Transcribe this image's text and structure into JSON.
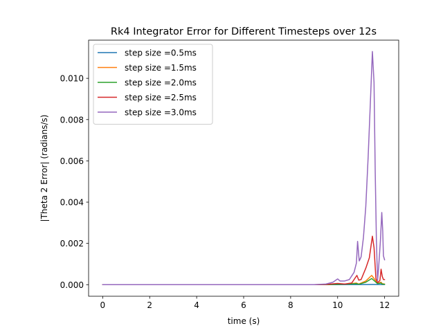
{
  "chart_data": {
    "type": "line",
    "title": "Rk4 Integrator Error for Different Timesteps over 12s",
    "xlabel": "time (s)",
    "ylabel": "|Theta 2 Error| (radians/s)",
    "xlim": [
      -0.6,
      12.6
    ],
    "ylim": [
      -0.00056,
      0.01185
    ],
    "xticks": [
      0,
      2,
      4,
      6,
      8,
      10,
      12
    ],
    "xtick_labels": [
      "0",
      "2",
      "4",
      "6",
      "8",
      "10",
      "12"
    ],
    "yticks": [
      0.0,
      0.002,
      0.004,
      0.006,
      0.008,
      0.01
    ],
    "ytick_labels": [
      "0.000",
      "0.002",
      "0.004",
      "0.006",
      "0.008",
      "0.010"
    ],
    "grid": false,
    "legend_position": "top-left",
    "series": [
      {
        "name": "step size =0.5ms",
        "color": "#1f77b4",
        "points": [
          [
            0,
            0
          ],
          [
            9.0,
            0
          ],
          [
            10.0,
            2e-06
          ],
          [
            11.0,
            5e-06
          ],
          [
            11.5,
            1e-05
          ],
          [
            12.0,
            5e-06
          ]
        ]
      },
      {
        "name": "step size =1.5ms",
        "color": "#ff7f0e",
        "points": [
          [
            0,
            0
          ],
          [
            9.0,
            0
          ],
          [
            9.6,
            5e-06
          ],
          [
            10.0,
            3e-05
          ],
          [
            10.5,
            4e-05
          ],
          [
            10.8,
            8e-05
          ],
          [
            10.9,
            3e-05
          ],
          [
            11.2,
            0.00018
          ],
          [
            11.45,
            0.00045
          ],
          [
            11.55,
            0.0003
          ],
          [
            11.7,
            8e-05
          ],
          [
            11.85,
            0.00012
          ],
          [
            11.9,
            5e-05
          ],
          [
            12.0,
            3e-05
          ]
        ]
      },
      {
        "name": "step size =2.0ms",
        "color": "#2ca02c",
        "points": [
          [
            0,
            0
          ],
          [
            9.0,
            0
          ],
          [
            9.6,
            5e-06
          ],
          [
            10.0,
            2e-05
          ],
          [
            10.5,
            3e-05
          ],
          [
            10.8,
            5e-05
          ],
          [
            10.9,
            2e-05
          ],
          [
            11.2,
            0.00012
          ],
          [
            11.45,
            0.0003
          ],
          [
            11.55,
            0.0002
          ],
          [
            11.7,
            5e-05
          ],
          [
            11.85,
            8e-05
          ],
          [
            11.9,
            3e-05
          ],
          [
            12.0,
            2e-05
          ]
        ]
      },
      {
        "name": "step size =2.5ms",
        "color": "#d62728",
        "points": [
          [
            0,
            0
          ],
          [
            9.0,
            0
          ],
          [
            9.5,
            1e-05
          ],
          [
            10.0,
            6e-05
          ],
          [
            10.3,
            3e-05
          ],
          [
            10.6,
            8e-05
          ],
          [
            10.82,
            0.00045
          ],
          [
            10.9,
            0.00022
          ],
          [
            11.0,
            0.00025
          ],
          [
            11.2,
            0.0008
          ],
          [
            11.35,
            0.0013
          ],
          [
            11.48,
            0.00235
          ],
          [
            11.55,
            0.0018
          ],
          [
            11.63,
            0.0003
          ],
          [
            11.7,
            0.0001
          ],
          [
            11.8,
            0.0002
          ],
          [
            11.85,
            0.00075
          ],
          [
            11.9,
            0.0004
          ],
          [
            11.95,
            0.00025
          ],
          [
            12.0,
            0.00025
          ]
        ]
      },
      {
        "name": "step size =3.0ms",
        "color": "#9467bd",
        "points": [
          [
            0,
            0
          ],
          [
            9.0,
            0
          ],
          [
            9.5,
            3e-05
          ],
          [
            9.8,
            0.00012
          ],
          [
            10.0,
            0.00028
          ],
          [
            10.1,
            0.00018
          ],
          [
            10.3,
            0.00018
          ],
          [
            10.5,
            0.00025
          ],
          [
            10.7,
            0.0006
          ],
          [
            10.8,
            0.00105
          ],
          [
            10.85,
            0.0021
          ],
          [
            10.92,
            0.00115
          ],
          [
            11.0,
            0.00135
          ],
          [
            11.1,
            0.0023
          ],
          [
            11.2,
            0.0038
          ],
          [
            11.3,
            0.0062
          ],
          [
            11.4,
            0.009
          ],
          [
            11.48,
            0.0113
          ],
          [
            11.55,
            0.0098
          ],
          [
            11.6,
            0.0055
          ],
          [
            11.65,
            0.0022
          ],
          [
            11.7,
            0.0002
          ],
          [
            11.75,
            0.0009
          ],
          [
            11.82,
            0.0021
          ],
          [
            11.88,
            0.0035
          ],
          [
            11.92,
            0.0026
          ],
          [
            11.95,
            0.0014
          ],
          [
            12.0,
            0.0012
          ]
        ]
      }
    ]
  }
}
